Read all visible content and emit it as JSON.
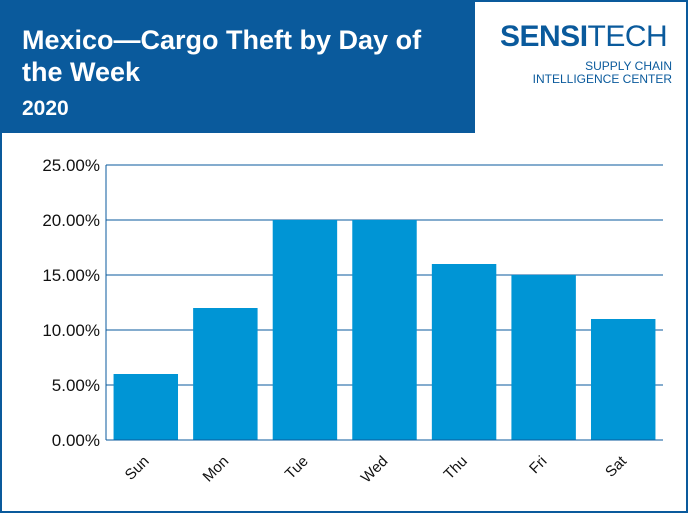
{
  "header": {
    "title": "Mexico—Cargo Theft by Day of the Week",
    "subtitle": "2020"
  },
  "logo": {
    "brand_bold": "SENSI",
    "brand_light": "TECH",
    "line1": "SUPPLY CHAIN",
    "line2": "INTELLIGENCE CENTER"
  },
  "colors": {
    "header": "#0a5a9c",
    "bar": "#0095d5",
    "gridline": "#0a5a9c"
  },
  "chart_data": {
    "type": "bar",
    "categories": [
      "Sun",
      "Mon",
      "Tue",
      "Wed",
      "Thu",
      "Fri",
      "Sat"
    ],
    "values": [
      6,
      12,
      20,
      20,
      16,
      15,
      11
    ],
    "ylim": [
      0,
      25
    ],
    "yticks": [
      0,
      5,
      10,
      15,
      20,
      25
    ],
    "ytick_labels": [
      "0.00%",
      "5.00%",
      "10.00%",
      "15.00%",
      "20.00%",
      "25.00%"
    ],
    "grid": true,
    "xlabel": "",
    "ylabel": ""
  }
}
